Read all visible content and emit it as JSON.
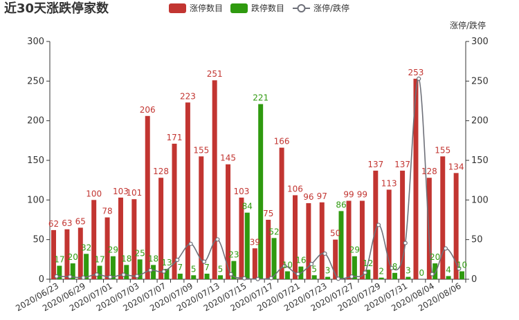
{
  "chart_data": {
    "type": "bar",
    "title": "近30天涨跌停家数",
    "y2_axis_name": "涨停/跌停",
    "ylim": [
      0,
      300
    ],
    "y_ticks": [
      0,
      50,
      100,
      150,
      200,
      250,
      300
    ],
    "y2lim": [
      0,
      300
    ],
    "y2_ticks": [
      0,
      50,
      100,
      150,
      200,
      250,
      300
    ],
    "legend_position": "top-center",
    "grid": false,
    "categories": [
      "2020/06/23",
      "2020/06/24",
      "2020/06/29",
      "2020/06/30",
      "2020/07/01",
      "2020/07/02",
      "2020/07/03",
      "2020/07/06",
      "2020/07/07",
      "2020/07/08",
      "2020/07/09",
      "2020/07/10",
      "2020/07/13",
      "2020/07/14",
      "2020/07/15",
      "2020/07/16",
      "2020/07/17",
      "2020/07/20",
      "2020/07/21",
      "2020/07/22",
      "2020/07/23",
      "2020/07/24",
      "2020/07/27",
      "2020/07/28",
      "2020/07/29",
      "2020/07/30",
      "2020/07/31",
      "2020/08/03",
      "2020/08/04",
      "2020/08/05",
      "2020/08/06"
    ],
    "visible_tick_labels": [
      "2020/06/23",
      "2020/06/29",
      "2020/07/01",
      "2020/07/03",
      "2020/07/07",
      "2020/07/09",
      "2020/07/13",
      "2020/07/15",
      "2020/07/17",
      "2020/07/21",
      "2020/07/23",
      "2020/07/27",
      "2020/07/29",
      "2020/07/31",
      "2020/08/04",
      "2020/08/06"
    ],
    "series": [
      {
        "name": "涨停数目",
        "color": "#c23531",
        "values": [
          62,
          63,
          65,
          100,
          78,
          103,
          101,
          206,
          128,
          171,
          223,
          155,
          251,
          145,
          103,
          39,
          75,
          166,
          106,
          96,
          97,
          50,
          99,
          99,
          137,
          113,
          137,
          253,
          128,
          155,
          134
        ]
      },
      {
        "name": "跌停数目",
        "color": "#2f9a0f",
        "values": [
          17,
          20,
          32,
          17,
          29,
          18,
          25,
          18,
          13,
          7,
          5,
          7,
          5,
          23,
          84,
          221,
          52,
          10,
          16,
          5,
          3,
          86,
          29,
          12,
          2,
          8,
          3,
          0,
          20,
          4,
          10
        ]
      },
      {
        "name": "涨停/跌停",
        "color": "#6e7079",
        "type": "line",
        "axis": "right",
        "values": [
          3.6,
          3.2,
          2.0,
          5.9,
          2.7,
          5.7,
          4.0,
          11.4,
          9.8,
          24.4,
          44.6,
          22.1,
          50.2,
          6.3,
          1.2,
          0.2,
          1.4,
          16.6,
          6.6,
          19.2,
          32.3,
          0.6,
          3.4,
          8.3,
          68.5,
          14.1,
          45.7,
          253,
          6.4,
          38.8,
          13.4
        ]
      }
    ]
  }
}
